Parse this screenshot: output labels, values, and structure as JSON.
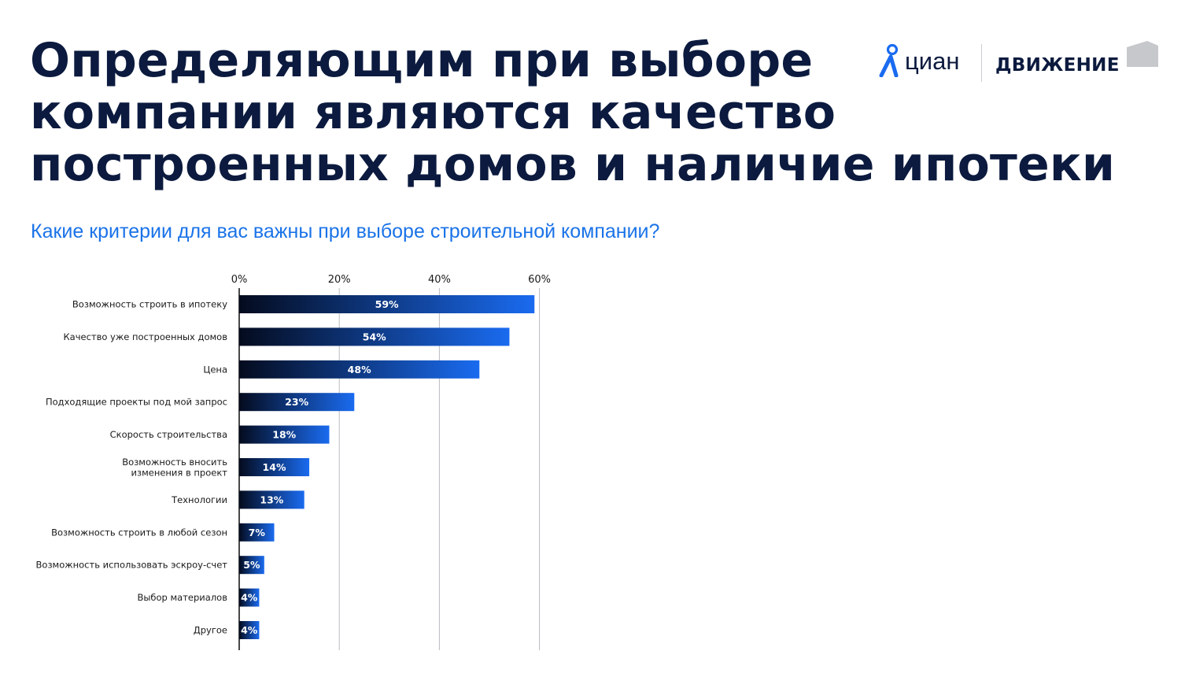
{
  "title_lines": [
    "Определяющим при выборе",
    "компании являются качество",
    "построенных домов и наличие ипотеки"
  ],
  "subtitle": "Какие критерии для вас важны при выборе строительной компании?",
  "logos": {
    "brand": "циан",
    "partner": "ДВИЖЕНИЕ"
  },
  "colors": {
    "title": "#0b1a3e",
    "subtitle": "#1a73e8",
    "bar_dark": "#040b1e",
    "bar_light": "#1a6bf0",
    "brand_blue": "#1a6bf0"
  },
  "chart_data": {
    "type": "bar",
    "orientation": "horizontal",
    "categories": [
      [
        "Возможность строить в ипотеку"
      ],
      [
        "Качество уже построенных домов"
      ],
      [
        "Цена"
      ],
      [
        "Подходящие проекты под мой запрос"
      ],
      [
        "Скорость строительства"
      ],
      [
        "Возможность вносить",
        "изменения в проект"
      ],
      [
        "Технологии"
      ],
      [
        "Возможность строить в любой сезон"
      ],
      [
        "Возможность использовать эскроу-счет"
      ],
      [
        "Выбор материалов"
      ],
      [
        "Другое"
      ]
    ],
    "values": [
      59,
      54,
      48,
      23,
      18,
      14,
      13,
      7,
      5,
      4,
      4
    ],
    "value_labels": [
      "59%",
      "54%",
      "48%",
      "23%",
      "18%",
      "14%",
      "13%",
      "7%",
      "5%",
      "4%",
      "4%"
    ],
    "x_ticks": [
      0,
      20,
      40,
      60
    ],
    "x_tick_labels": [
      "0%",
      "20%",
      "40%",
      "60%"
    ],
    "xlim": [
      0,
      60
    ],
    "x_axis_position": "top",
    "grid": true
  }
}
